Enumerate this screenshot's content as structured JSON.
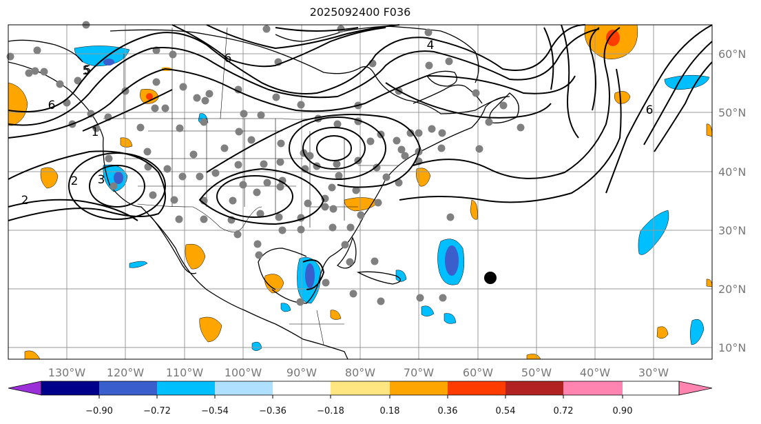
{
  "title": "2025092400 F036",
  "lon_labels": [
    "130°W",
    "120°W",
    "110°W",
    "100°W",
    "90°W",
    "80°W",
    "70°W",
    "60°W",
    "50°W",
    "40°W",
    "30°W"
  ],
  "lat_labels": [
    "60°N",
    "50°N",
    "40°N",
    "30°N",
    "20°N",
    "10°N"
  ],
  "colorbar": {
    "ticks": [
      "−0.90",
      "−0.72",
      "−0.54",
      "−0.36",
      "−0.18",
      "0.18",
      "0.36",
      "0.54",
      "0.72",
      "0.90"
    ],
    "colors": [
      "#9b30d8",
      "#00008b",
      "#3a5fcd",
      "#00bfff",
      "#b0e0ff",
      "#ffffff",
      "#ffe680",
      "#ffa500",
      "#ff3c00",
      "#b22222",
      "#ff85b0"
    ]
  },
  "contour_labels": [
    "2",
    "2",
    "3",
    "1",
    "6",
    "6",
    "6",
    "5",
    "4",
    "5"
  ],
  "colors": {
    "station": "#808080",
    "storm_marker": "#000000",
    "orange": "#ffa500",
    "blue": "#00bfff",
    "deep_blue": "#3a5fcd"
  }
}
